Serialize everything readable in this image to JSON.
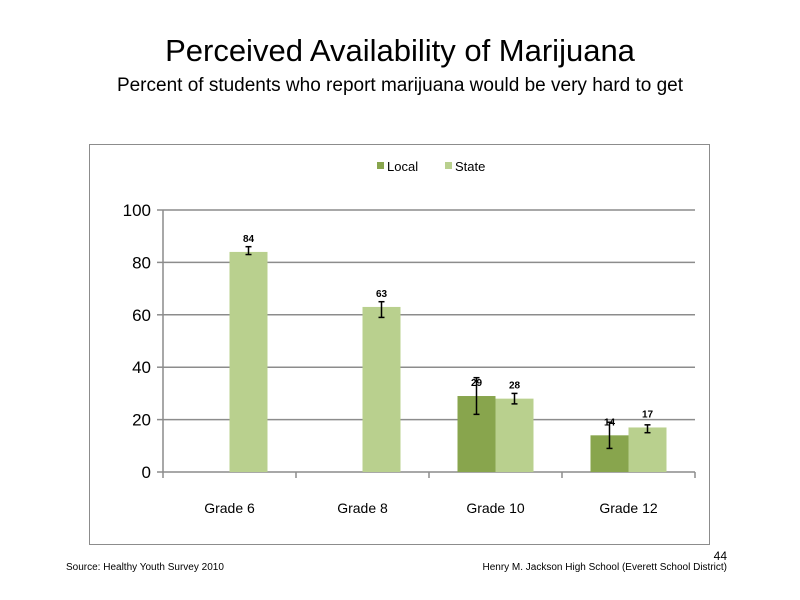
{
  "slide": {
    "title": "Perceived  Availability  of Marijuana",
    "subtitle": "Percent of students who report marijuana  would be very hard to get",
    "source": "Source: Healthy Youth Survey 2010",
    "credit": "Henry M.  Jackson High  School (Everett School District)",
    "page_number": "44"
  },
  "colors": {
    "local": "#88a54d",
    "state": "#b9d08e",
    "grid": "#8c8c8c",
    "error_bar": "#000000"
  },
  "chart_data": {
    "type": "bar",
    "title": "",
    "xlabel": "",
    "ylabel": "",
    "categories": [
      "Grade 6",
      "Grade 8",
      "Grade 10",
      "Grade 12"
    ],
    "ylim": [
      0,
      100
    ],
    "yticks": [
      "0",
      "20",
      "40",
      "60",
      "80",
      "100"
    ],
    "grid": true,
    "legend_position": "top-center",
    "series": [
      {
        "name": "Local",
        "values": [
          null,
          null,
          29,
          14
        ],
        "labels": [
          "",
          "",
          "29",
          "14"
        ],
        "error_low": [
          null,
          null,
          22,
          9
        ],
        "error_high": [
          null,
          null,
          36,
          19
        ]
      },
      {
        "name": "State",
        "values": [
          84,
          63,
          28,
          17
        ],
        "labels": [
          "84",
          "63",
          "28",
          "17"
        ],
        "error_low": [
          83,
          59,
          26,
          15
        ],
        "error_high": [
          86,
          65,
          30,
          18
        ]
      }
    ]
  }
}
